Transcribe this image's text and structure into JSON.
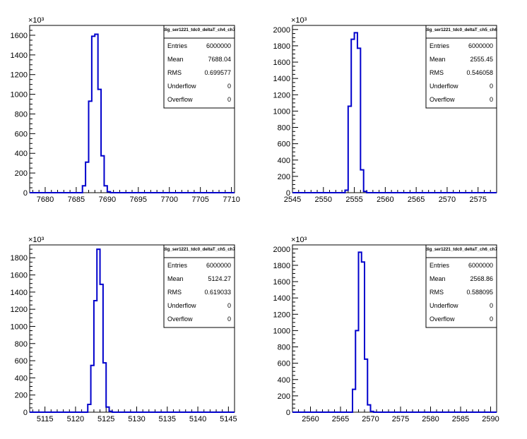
{
  "chart_data": [
    {
      "type": "histogram",
      "title": "dig_ser1221_tdc0_deltaT_ch4_ch7",
      "exponent_label": "×10³",
      "xlim": [
        7677.5,
        7710.5
      ],
      "ylim": [
        0,
        1700
      ],
      "x_ticks": [
        7680,
        7685,
        7690,
        7695,
        7700,
        7705,
        7710
      ],
      "y_ticks": [
        0,
        200,
        400,
        600,
        800,
        1000,
        1200,
        1400,
        1600
      ],
      "bin_width": 0.5,
      "bins": [
        {
          "x": 7685.5,
          "y": 0
        },
        {
          "x": 7686.0,
          "y": 70
        },
        {
          "x": 7686.5,
          "y": 310
        },
        {
          "x": 7687.0,
          "y": 930
        },
        {
          "x": 7687.5,
          "y": 1590
        },
        {
          "x": 7688.0,
          "y": 1610
        },
        {
          "x": 7688.5,
          "y": 1050
        },
        {
          "x": 7689.0,
          "y": 375
        },
        {
          "x": 7689.5,
          "y": 70
        },
        {
          "x": 7690.0,
          "y": 10
        }
      ],
      "stats": [
        {
          "label": "Entries",
          "value": "6000000"
        },
        {
          "label": "Mean",
          "value": "7688.04"
        },
        {
          "label": "RMS",
          "value": "0.699577"
        },
        {
          "label": "Underflow",
          "value": "0"
        },
        {
          "label": "Overflow",
          "value": "0"
        }
      ]
    },
    {
      "type": "histogram",
      "title": "dig_ser1221_tdc0_deltaT_ch5_ch6",
      "exponent_label": "×10³",
      "xlim": [
        2545,
        2578
      ],
      "ylim": [
        0,
        2050
      ],
      "x_ticks": [
        2545,
        2550,
        2555,
        2560,
        2565,
        2570,
        2575
      ],
      "y_ticks": [
        0,
        200,
        400,
        600,
        800,
        1000,
        1200,
        1400,
        1600,
        1800,
        2000
      ],
      "bin_width": 0.5,
      "bins": [
        {
          "x": 2553.0,
          "y": 0
        },
        {
          "x": 2553.5,
          "y": 30
        },
        {
          "x": 2554.0,
          "y": 1060
        },
        {
          "x": 2554.5,
          "y": 1880
        },
        {
          "x": 2555.0,
          "y": 1960
        },
        {
          "x": 2555.5,
          "y": 1770
        },
        {
          "x": 2556.0,
          "y": 280
        },
        {
          "x": 2556.5,
          "y": 15
        }
      ],
      "stats": [
        {
          "label": "Entries",
          "value": "6000000"
        },
        {
          "label": "Mean",
          "value": "2555.45"
        },
        {
          "label": "RMS",
          "value": "0.546058"
        },
        {
          "label": "Underflow",
          "value": "0"
        },
        {
          "label": "Overflow",
          "value": "0"
        }
      ]
    },
    {
      "type": "histogram",
      "title": "dig_ser1221_tdc0_deltaT_ch5_ch7",
      "exponent_label": "×10³",
      "xlim": [
        5112.5,
        5146
      ],
      "ylim": [
        0,
        1950
      ],
      "x_ticks": [
        5115,
        5120,
        5125,
        5130,
        5135,
        5140,
        5145
      ],
      "y_ticks": [
        0,
        200,
        400,
        600,
        800,
        1000,
        1200,
        1400,
        1600,
        1800
      ],
      "bin_width": 0.5,
      "bins": [
        {
          "x": 5121.5,
          "y": 0
        },
        {
          "x": 5122.0,
          "y": 90
        },
        {
          "x": 5122.5,
          "y": 545
        },
        {
          "x": 5123.0,
          "y": 1300
        },
        {
          "x": 5123.5,
          "y": 1900
        },
        {
          "x": 5124.0,
          "y": 1490
        },
        {
          "x": 5124.5,
          "y": 575
        },
        {
          "x": 5125.0,
          "y": 60
        },
        {
          "x": 5125.5,
          "y": 10
        }
      ],
      "stats": [
        {
          "label": "Entries",
          "value": "6000000"
        },
        {
          "label": "Mean",
          "value": "5124.27"
        },
        {
          "label": "RMS",
          "value": "0.619033"
        },
        {
          "label": "Underflow",
          "value": "0"
        },
        {
          "label": "Overflow",
          "value": "0"
        }
      ]
    },
    {
      "type": "histogram",
      "title": "dig_ser1221_tdc0_deltaT_ch6_ch7",
      "exponent_label": "×10³",
      "xlim": [
        2557,
        2591
      ],
      "ylim": [
        0,
        2050
      ],
      "x_ticks": [
        2560,
        2565,
        2570,
        2575,
        2580,
        2585,
        2590
      ],
      "y_ticks": [
        0,
        200,
        400,
        600,
        800,
        1000,
        1200,
        1400,
        1600,
        1800,
        2000
      ],
      "bin_width": 0.5,
      "bins": [
        {
          "x": 2566.5,
          "y": 0
        },
        {
          "x": 2567.0,
          "y": 280
        },
        {
          "x": 2567.5,
          "y": 1000
        },
        {
          "x": 2568.0,
          "y": 1960
        },
        {
          "x": 2568.5,
          "y": 1840
        },
        {
          "x": 2569.0,
          "y": 650
        },
        {
          "x": 2569.5,
          "y": 90
        },
        {
          "x": 2570.0,
          "y": 10
        }
      ],
      "stats": [
        {
          "label": "Entries",
          "value": "6000000"
        },
        {
          "label": "Mean",
          "value": "2568.86"
        },
        {
          "label": "RMS",
          "value": "0.588095"
        },
        {
          "label": "Underflow",
          "value": "0"
        },
        {
          "label": "Overflow",
          "value": "0"
        }
      ]
    }
  ],
  "colors": {
    "histogram_line": "#0000cc",
    "axis": "#000000",
    "background": "#ffffff"
  }
}
